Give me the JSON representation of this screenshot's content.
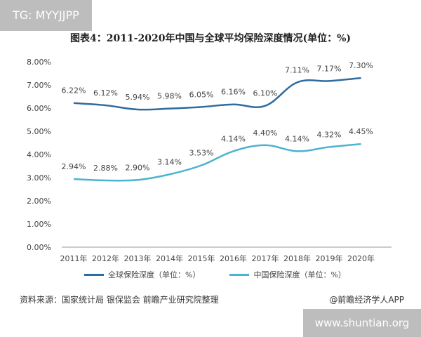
{
  "badge": {
    "text": "TG: MYYJJPP"
  },
  "footer": {
    "source": "资料来源：国家统计局 银保监会 前瞻产业研究院整理",
    "brand": "@前瞻经济学人APP",
    "site": "www.shuntian.org"
  },
  "chart_data": {
    "type": "line",
    "title": "图表4：2011-2020年中国与全球平均保险深度情况(单位：%)",
    "categories": [
      "2011年",
      "2012年",
      "2013年",
      "2014年",
      "2015年",
      "2016年",
      "2017年",
      "2018年",
      "2019年",
      "2020年"
    ],
    "y_ticks": [
      "0.00%",
      "1.00%",
      "2.00%",
      "3.00%",
      "4.00%",
      "5.00%",
      "6.00%",
      "7.00%",
      "8.00%"
    ],
    "ylim": [
      0,
      8
    ],
    "grid": false,
    "legend_position": "bottom",
    "series": [
      {
        "name": "全球保险深度（单位：%）",
        "color": "#2e6b9e",
        "values": [
          6.22,
          6.12,
          5.94,
          5.98,
          6.05,
          6.16,
          6.1,
          7.11,
          7.17,
          7.3
        ],
        "labels": [
          "6.22%",
          "6.12%",
          "5.94%",
          "5.98%",
          "6.05%",
          "6.16%",
          "6.10%",
          "7.11%",
          "7.17%",
          "7.30%"
        ]
      },
      {
        "name": "中国保险深度（单位：%）",
        "color": "#4bb3cf",
        "values": [
          2.94,
          2.88,
          2.9,
          3.14,
          3.53,
          4.14,
          4.4,
          4.14,
          4.32,
          4.45
        ],
        "labels": [
          "2.94%",
          "2.88%",
          "2.90%",
          "3.14%",
          "3.53%",
          "4.14%",
          "4.40%",
          "4.14%",
          "4.32%",
          "4.45%"
        ]
      }
    ]
  }
}
